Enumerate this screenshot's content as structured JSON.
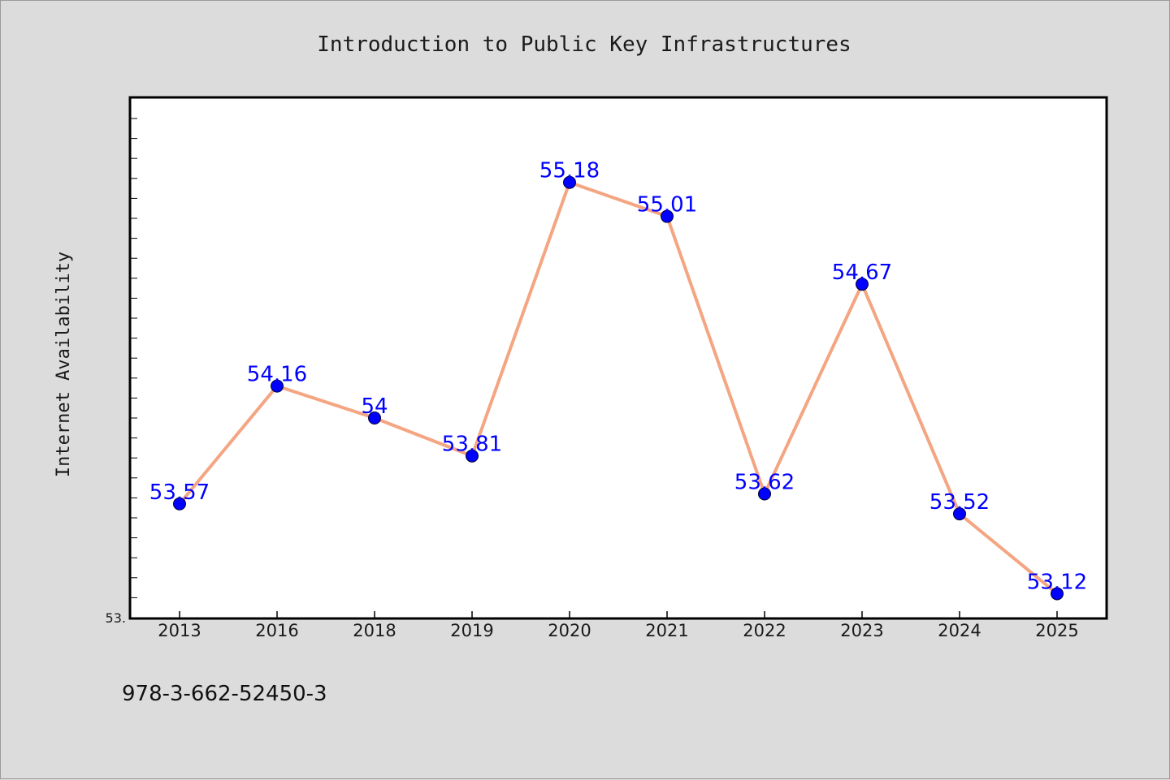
{
  "chart_data": {
    "type": "line",
    "title": "Introduction to Public Key Infrastructures",
    "xlabel": "",
    "ylabel": "Internet Availability",
    "categories": [
      "2013",
      "2016",
      "2018",
      "2019",
      "2020",
      "2021",
      "2022",
      "2023",
      "2024",
      "2025"
    ],
    "series": [
      {
        "values": [
          53.57,
          54.16,
          54.0,
          53.81,
          55.18,
          55.01,
          53.62,
          54.67,
          53.52,
          53.12
        ],
        "data_labels": [
          "53.57",
          "54.16",
          "54",
          "53.81",
          "55.18",
          "55.01",
          "53.62",
          "54.67",
          "53.52",
          "53.12"
        ],
        "line_color": "#f4a582",
        "marker_color": "#0000ff"
      }
    ],
    "ylim": [
      53.0,
      55.6
    ],
    "ytick_labels": [
      "53."
    ],
    "minor_tick_step": 0.1,
    "grid": false,
    "legend": "none",
    "footer": "978-3-662-52450-3",
    "colors": {
      "line": "#f4a582",
      "marker": "#0000ff",
      "label": "#0000ff",
      "background": "#dcdcdc",
      "plot_area": "#ffffff"
    }
  }
}
